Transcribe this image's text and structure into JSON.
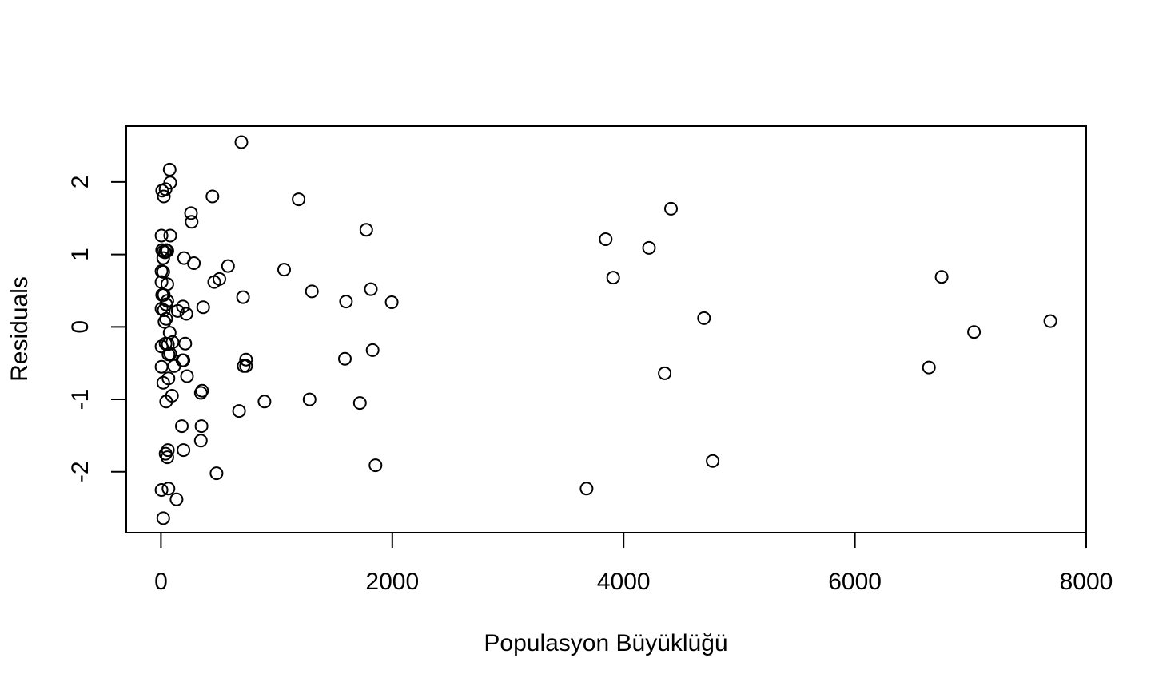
{
  "chart_data": {
    "type": "scatter",
    "title": "",
    "xlabel": "Populasyon Büyüklüğü",
    "ylabel": "Residuals",
    "xlim": [
      -300,
      8000
    ],
    "ylim": [
      -2.84,
      2.77
    ],
    "x_ticks": [
      0,
      2000,
      4000,
      6000,
      8000
    ],
    "x_tick_labels": [
      "0",
      "2000",
      "4000",
      "6000",
      "8000"
    ],
    "y_ticks": [
      -2,
      -1,
      0,
      1,
      2
    ],
    "y_tick_labels": [
      "-2",
      "-1",
      "0",
      "1",
      "2"
    ],
    "grid": false,
    "legend": "none",
    "marker": "open-circle",
    "series": [
      {
        "points": [
          [
            695,
            2.55
          ],
          [
            75,
            2.17
          ],
          [
            80,
            1.99
          ],
          [
            40,
            1.9
          ],
          [
            10,
            1.88
          ],
          [
            25,
            1.8
          ],
          [
            445,
            1.8
          ],
          [
            1190,
            1.76
          ],
          [
            4410,
            1.63
          ],
          [
            260,
            1.57
          ],
          [
            265,
            1.45
          ],
          [
            1775,
            1.34
          ],
          [
            5,
            1.26
          ],
          [
            80,
            1.26
          ],
          [
            3845,
            1.21
          ],
          [
            4220,
            1.09
          ],
          [
            10,
            1.06
          ],
          [
            20,
            1.04
          ],
          [
            45,
            1.06
          ],
          [
            35,
            1.03
          ],
          [
            55,
            1.05
          ],
          [
            20,
            0.95
          ],
          [
            200,
            0.95
          ],
          [
            285,
            0.88
          ],
          [
            580,
            0.84
          ],
          [
            1065,
            0.79
          ],
          [
            5,
            0.77
          ],
          [
            20,
            0.76
          ],
          [
            6750,
            0.69
          ],
          [
            3910,
            0.68
          ],
          [
            505,
            0.66
          ],
          [
            460,
            0.62
          ],
          [
            5,
            0.62
          ],
          [
            55,
            0.59
          ],
          [
            1815,
            0.52
          ],
          [
            1305,
            0.49
          ],
          [
            10,
            0.44
          ],
          [
            25,
            0.44
          ],
          [
            710,
            0.41
          ],
          [
            55,
            0.36
          ],
          [
            1600,
            0.35
          ],
          [
            1995,
            0.34
          ],
          [
            45,
            0.31
          ],
          [
            190,
            0.28
          ],
          [
            365,
            0.27
          ],
          [
            5,
            0.25
          ],
          [
            25,
            0.23
          ],
          [
            145,
            0.22
          ],
          [
            220,
            0.18
          ],
          [
            4695,
            0.12
          ],
          [
            45,
            0.11
          ],
          [
            30,
            0.07
          ],
          [
            7690,
            0.08
          ],
          [
            75,
            -0.08
          ],
          [
            7030,
            -0.07
          ],
          [
            5,
            -0.27
          ],
          [
            40,
            -0.23
          ],
          [
            60,
            -0.24
          ],
          [
            100,
            -0.21
          ],
          [
            210,
            -0.23
          ],
          [
            1830,
            -0.32
          ],
          [
            65,
            -0.38
          ],
          [
            80,
            -0.37
          ],
          [
            1590,
            -0.44
          ],
          [
            735,
            -0.45
          ],
          [
            185,
            -0.46
          ],
          [
            195,
            -0.46
          ],
          [
            5,
            -0.55
          ],
          [
            115,
            -0.54
          ],
          [
            715,
            -0.54
          ],
          [
            735,
            -0.54
          ],
          [
            6640,
            -0.56
          ],
          [
            4355,
            -0.64
          ],
          [
            225,
            -0.68
          ],
          [
            65,
            -0.71
          ],
          [
            20,
            -0.77
          ],
          [
            355,
            -0.88
          ],
          [
            345,
            -0.91
          ],
          [
            95,
            -0.95
          ],
          [
            45,
            -1.03
          ],
          [
            895,
            -1.03
          ],
          [
            1285,
            -1.0
          ],
          [
            1720,
            -1.05
          ],
          [
            675,
            -1.16
          ],
          [
            180,
            -1.37
          ],
          [
            350,
            -1.37
          ],
          [
            345,
            -1.57
          ],
          [
            60,
            -1.7
          ],
          [
            195,
            -1.7
          ],
          [
            40,
            -1.75
          ],
          [
            55,
            -1.8
          ],
          [
            1855,
            -1.91
          ],
          [
            4770,
            -1.85
          ],
          [
            480,
            -2.02
          ],
          [
            5,
            -2.25
          ],
          [
            65,
            -2.23
          ],
          [
            3680,
            -2.23
          ],
          [
            135,
            -2.38
          ],
          [
            20,
            -2.64
          ]
        ]
      }
    ]
  }
}
